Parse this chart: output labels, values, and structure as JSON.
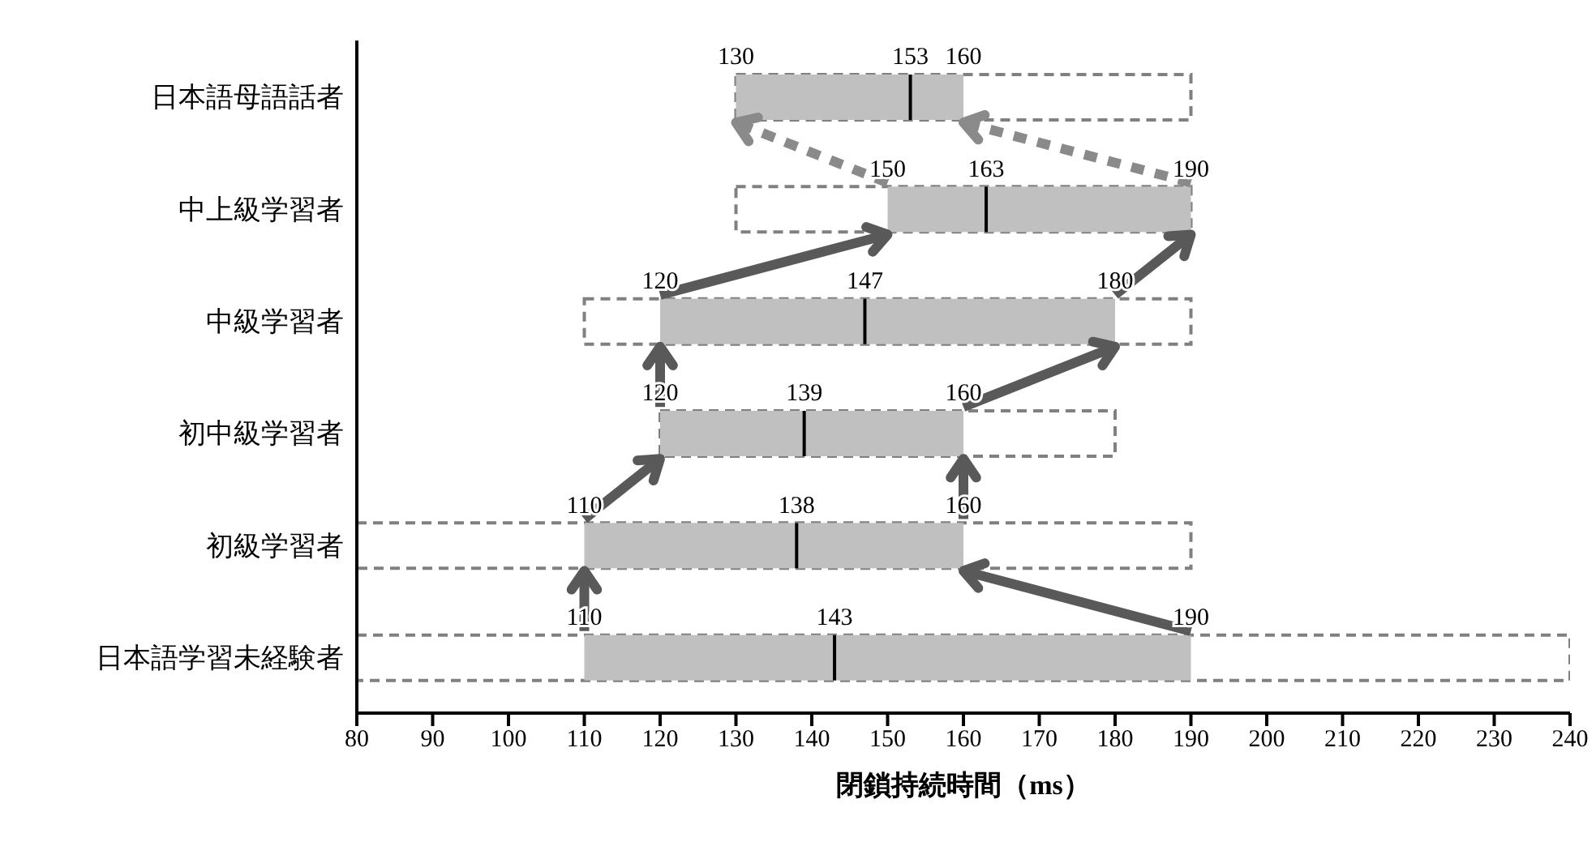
{
  "chart_data": {
    "type": "bar",
    "orientation": "horizontal",
    "xlabel": "閉鎖持続時間（ms）",
    "categories": [
      "日本語母語話者",
      "中上級学習者",
      "中級学習者",
      "初中級学習者",
      "初級学習者",
      "日本語学習未経験者"
    ],
    "series": [
      {
        "color": "#808080",
        "line_style": "dashed",
        "base": [
          130,
          130,
          110,
          120,
          80,
          80
        ],
        "values": [
          60,
          60,
          80,
          60,
          110,
          160
        ]
      },
      {
        "type": "box",
        "color": "#c0c0c0",
        "boxes": [
          {
            "low": 130,
            "q1": 130,
            "median": 153,
            "q3": 160,
            "high": 160
          },
          {
            "low": 150,
            "q1": 150,
            "median": 163,
            "q3": 190,
            "high": 190
          },
          {
            "low": 120,
            "q1": 120,
            "median": 147,
            "q3": 180,
            "high": 180
          },
          {
            "low": 120,
            "q1": 120,
            "median": 139,
            "q3": 160,
            "high": 160
          },
          {
            "low": 110,
            "q1": 110,
            "median": 138,
            "q3": 160,
            "high": 160
          },
          {
            "low": 110,
            "q1": 110,
            "median": 143,
            "q3": 190,
            "high": 190
          }
        ]
      }
    ],
    "xlim": [
      80,
      240
    ],
    "xticks": [
      80,
      90,
      100,
      110,
      120,
      130,
      140,
      150,
      160,
      170,
      180,
      190,
      200,
      210,
      220,
      230,
      240
    ],
    "annotations": [
      {
        "text": "130",
        "x": 130,
        "y": "日本語母語話者"
      },
      {
        "text": "153",
        "x": 153,
        "y": "日本語母語話者"
      },
      {
        "text": "160",
        "x": 160,
        "y": "日本語母語話者"
      },
      {
        "text": "150",
        "x": 150,
        "y": "中上級学習者"
      },
      {
        "text": "163",
        "x": 163,
        "y": "中上級学習者"
      },
      {
        "text": "190",
        "x": 190,
        "y": "中上級学習者"
      },
      {
        "text": "120",
        "x": 120,
        "y": "中級学習者"
      },
      {
        "text": "147",
        "x": 147,
        "y": "中級学習者"
      },
      {
        "text": "180",
        "x": 180,
        "y": "中級学習者"
      },
      {
        "text": "120",
        "x": 120,
        "y": "初中級学習者"
      },
      {
        "text": "139",
        "x": 139,
        "y": "初中級学習者"
      },
      {
        "text": "160",
        "x": 160,
        "y": "初中級学習者"
      },
      {
        "text": "110",
        "x": 110,
        "y": "初級学習者"
      },
      {
        "text": "138",
        "x": 138,
        "y": "初級学習者"
      },
      {
        "text": "160",
        "x": 160,
        "y": "初級学習者"
      },
      {
        "text": "110",
        "x": 110,
        "y": "日本語学習未経験者"
      },
      {
        "text": "143",
        "x": 143,
        "y": "日本語学習未経験者"
      },
      {
        "text": "190",
        "x": 190,
        "y": "日本語学習未経験者"
      }
    ]
  }
}
